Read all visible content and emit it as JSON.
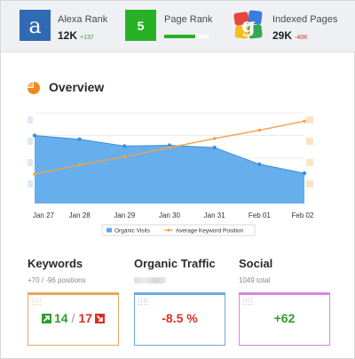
{
  "header": {
    "alexa": {
      "icon": "alexa-a-icon",
      "glyph": "a",
      "label": "Alexa Rank",
      "value": "12K",
      "delta": "+137"
    },
    "pagerank": {
      "icon": "pagerank-badge-icon",
      "value": "5",
      "label": "Page Rank",
      "level": 0.7
    },
    "indexed": {
      "icon": "google-logo-icon",
      "label": "Indexed Pages",
      "value": "29K",
      "delta": "-40K"
    }
  },
  "overview": {
    "icon": "pie-chart-icon",
    "title": "Overview"
  },
  "chart_data": {
    "type": "area",
    "categories": [
      "Jan 27",
      "Jan 28",
      "Jan 29",
      "Jan 30",
      "Jan 31",
      "Feb 01",
      "Feb 02"
    ],
    "series": [
      {
        "name": "Organic Visits",
        "type": "area",
        "color": "#5aa7ec",
        "values": [
          0.9,
          0.85,
          0.76,
          0.77,
          0.74,
          0.52,
          0.4
        ]
      },
      {
        "name": "Average Keyword Position",
        "type": "line",
        "color": "#f0a24a",
        "values": [
          0.39,
          0.51,
          0.62,
          0.74,
          0.86,
          0.97,
          1.09
        ]
      }
    ],
    "xlabel": "",
    "ylabel": "",
    "ylim": [
      0,
      1.2
    ],
    "grid": true,
    "legend": "bottom-center"
  },
  "cards": {
    "keywords": {
      "title": "Keywords",
      "subtitle": "+70 / -96 positions",
      "up_value": "14",
      "separator": "/",
      "down_value": "17",
      "accent": "#e9a55c"
    },
    "traffic": {
      "title": "Organic Traffic",
      "value": "-8.5 %",
      "accent": "#6aa9e3"
    },
    "social": {
      "title": "Social",
      "subtitle": "1049 total",
      "value": "+62",
      "accent": "#d887d8"
    }
  }
}
